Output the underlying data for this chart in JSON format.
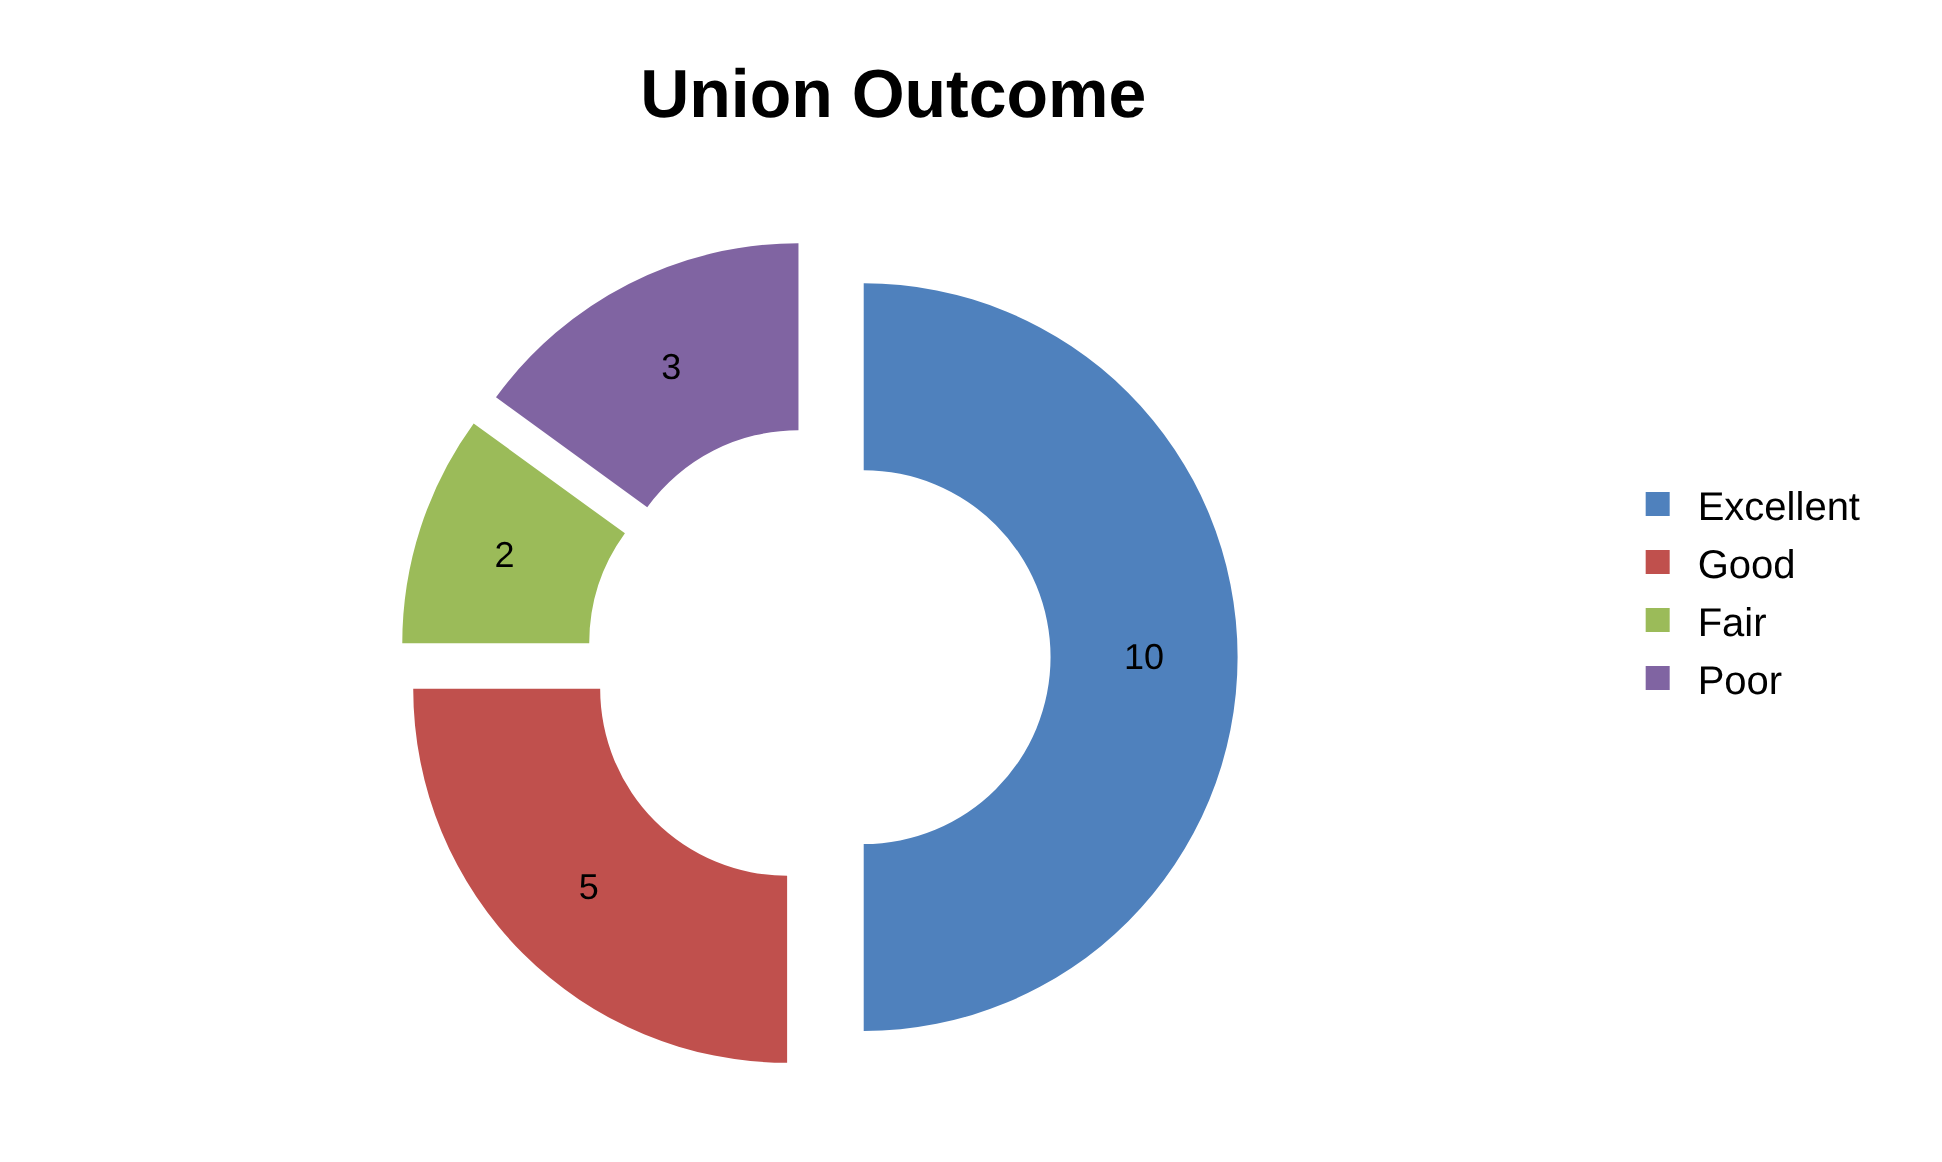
{
  "chart_data": {
    "type": "donut",
    "title": "Union Outcome",
    "categories": [
      "Excellent",
      "Good",
      "Fair",
      "Poor"
    ],
    "values": [
      10,
      5,
      2,
      3
    ],
    "colors": [
      "#4f81bd",
      "#c0504d",
      "#9bbb59",
      "#8064a2"
    ],
    "data_labels": true,
    "legend": "right"
  }
}
